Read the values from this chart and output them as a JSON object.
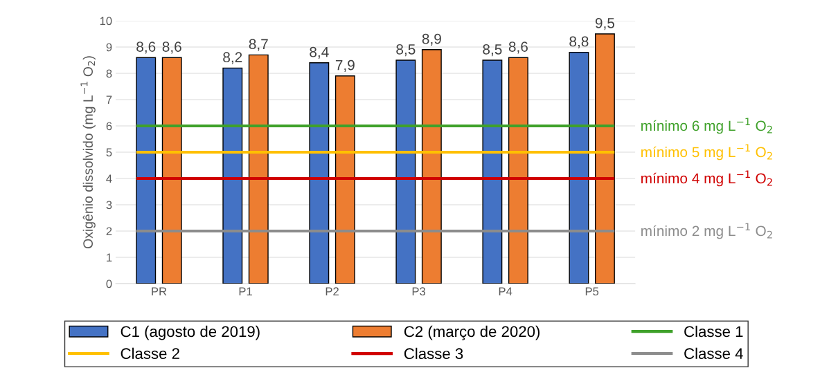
{
  "chart_data": {
    "type": "bar",
    "ylabel": "Oxigênio dissolvido (mg L$^{−1}$ O$_{2}$)",
    "categories": [
      "PR",
      "P1",
      "P2",
      "P3",
      "P4",
      "P5"
    ],
    "series": [
      {
        "name": "C1 (agosto de 2019)",
        "color": "#4472c4",
        "values": [
          8.6,
          8.2,
          8.4,
          8.5,
          8.5,
          8.8
        ],
        "value_labels": [
          "8,6",
          "8,2",
          "8,4",
          "8,5",
          "8,5",
          "8,8"
        ]
      },
      {
        "name": "C2 (março de 2020)",
        "color": "#ed7d31",
        "values": [
          8.6,
          8.7,
          7.9,
          8.9,
          8.6,
          9.5
        ],
        "value_labels": [
          "8,6",
          "8,7",
          "7,9",
          "8,9",
          "8,6",
          "9,5"
        ]
      }
    ],
    "ylim": [
      0,
      10
    ],
    "yticks": [
      0,
      1,
      2,
      3,
      4,
      5,
      6,
      7,
      8,
      9,
      10
    ],
    "grid": "y",
    "legend": "bottom",
    "ref_lines": [
      {
        "axis": "y",
        "value": 6,
        "label": "Classe 1",
        "color": "#3fa12a"
      },
      {
        "axis": "y",
        "value": 5,
        "label": "Classe 2",
        "color": "#ffc000"
      },
      {
        "axis": "y",
        "value": 4,
        "label": "Classe 3",
        "color": "#d00000"
      },
      {
        "axis": "y",
        "value": 2,
        "label": "Classe 4",
        "color": "#8c8c8c"
      }
    ],
    "annotations": [
      "mínimo 6 mg L$^{−1}$ O$_{2}$",
      "mínimo 5 mg L$^{−1}$ O$_{2}$",
      "mínimo 4 mg L$^{−1}$ O$_{2}$",
      "mínimo 2 mg L$^{−1}$ O$_{2}$"
    ]
  }
}
